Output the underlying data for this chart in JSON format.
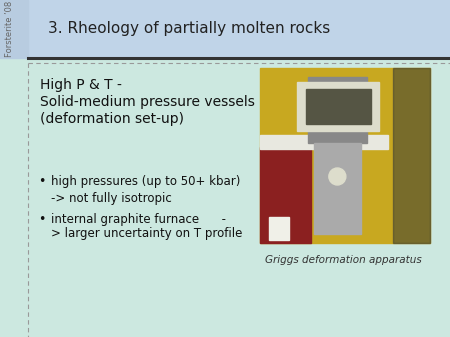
{
  "bg_color": "#cce8e0",
  "header_bg": "#c0d4e8",
  "header_text": "3. Rheology of partially molten rocks",
  "header_fontsize": 11,
  "header_text_color": "#222222",
  "sidebar_text": "Forsterite ’08",
  "sidebar_color": "#666666",
  "title_line1": "High P & T -",
  "title_line2": "Solid-medium pressure vessels",
  "title_line3": "(deformation set-up)",
  "title_fontsize": 10,
  "title_color": "#111111",
  "bullet1": "high pressures (up to 50+ kbar)",
  "bullet1_sub": "-> not fully isotropic",
  "bullet2_line1": "internal graphite furnace      -",
  "bullet2_line2": "> larger uncertainty on T profile",
  "bullet_fontsize": 8.5,
  "bullet_color": "#111111",
  "caption": "Griggs deformation apparatus",
  "caption_fontsize": 7.5,
  "caption_color": "#333333",
  "separator_color": "#333333",
  "dashed_line_color": "#999999",
  "left_dashed_color": "#999999",
  "photo_bg": "#c8a820",
  "photo_red": "#8b2020",
  "photo_gray1": "#888888",
  "photo_gray2": "#aaaaaa",
  "photo_gray3": "#cccccc",
  "photo_dark": "#333333"
}
